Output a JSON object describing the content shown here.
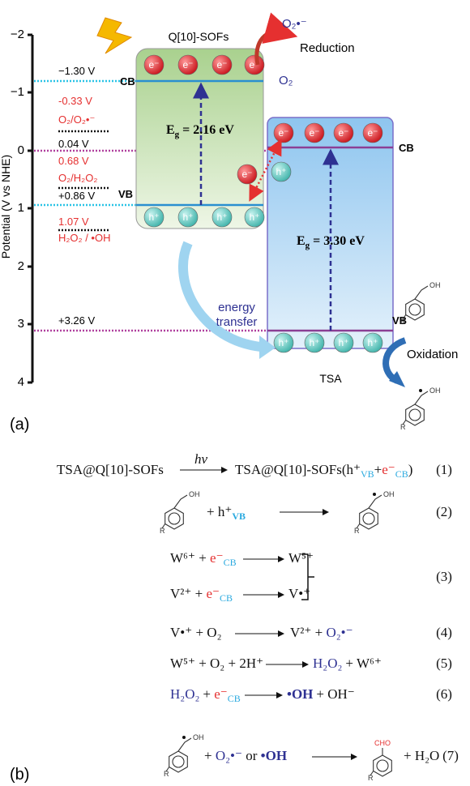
{
  "panel_a": {
    "label": "(a)",
    "axis": {
      "title": "Potential (V vs NHE)",
      "ticks": [
        "−2",
        "−1",
        "0",
        "1",
        "2",
        "3",
        "4"
      ]
    },
    "sofs": {
      "name": "Q[10]-SOFs",
      "cb": "CB",
      "vb": "VB",
      "electron": "e⁻",
      "hole": "h⁺",
      "eg": "E",
      "eg_sub": "g",
      "eg_value": " = 2.16 eV"
    },
    "tsa": {
      "name": "TSA",
      "cb": "CB",
      "vb": "VB",
      "eg_value": " = 3.30 eV"
    },
    "levels": [
      "−1.30 V",
      "-0.33 V",
      "O₂/O₂•⁻",
      "0.04 V",
      "0.68 V",
      "O₂/H₂O₂",
      "+0.86 V",
      "1.07 V",
      "H₂O₂ / •OH",
      "+3.26 V"
    ],
    "reduction": {
      "product": "O₂•⁻",
      "label": "Reduction",
      "reactant": "O₂"
    },
    "energy_transfer": [
      "energy",
      "transfer"
    ],
    "oxidation": "Oxidation",
    "molecule": {
      "oh": "OH",
      "r": "R"
    }
  },
  "panel_b": {
    "label": "(b)",
    "molecule": {
      "oh": "OH",
      "r": "R",
      "cho": "CHO"
    },
    "equations": [
      {
        "parts": [
          "TSA@Q[10]-SOFs",
          "hν",
          "TSA@Q[10]-SOFs(h⁺",
          "VB",
          "+",
          "e⁻",
          "CB",
          ")"
        ],
        "number": "(1)"
      },
      {
        "parts": [
          "+ h⁺",
          "VB"
        ],
        "number": "(2)"
      },
      {
        "lines": [
          [
            "W⁶⁺ + ",
            "e⁻",
            "CB",
            "W⁵⁺"
          ],
          [
            "V²⁺ + ",
            "e⁻",
            "CB",
            "V•⁺"
          ]
        ],
        "number": "(3)"
      },
      {
        "parts": [
          "V•⁺ + O₂",
          "V²⁺ + ",
          "O₂•⁻"
        ],
        "number": "(4)"
      },
      {
        "parts": [
          "W⁵⁺ + O₂ + 2H⁺",
          "H₂O₂",
          "+ W⁶⁺"
        ],
        "number": "(5)"
      },
      {
        "parts": [
          "H₂O₂",
          "+ ",
          "e⁻",
          "CB",
          "•OH",
          "+ OH⁻"
        ],
        "number": "(6)"
      },
      {
        "parts": [
          "+ ",
          "O₂•⁻",
          " or ",
          "•OH",
          "+ H₂O"
        ],
        "number": "(7)"
      }
    ]
  }
}
